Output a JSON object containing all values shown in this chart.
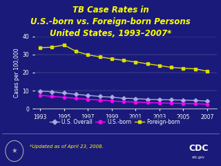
{
  "title_line1": "TB Case Rates in",
  "title_line2": "U.S.-born vs. Foreign-born Persons",
  "title_line3": "United States, 1993–2007*",
  "title_color": "#FFFF00",
  "background_color": "#1a1a7a",
  "plot_bg_color": "#1a1a7a",
  "years": [
    1993,
    1994,
    1995,
    1996,
    1997,
    1998,
    1999,
    2000,
    2001,
    2002,
    2003,
    2004,
    2005,
    2006,
    2007
  ],
  "us_overall": [
    9.8,
    9.4,
    8.7,
    8.0,
    7.4,
    6.8,
    6.4,
    5.8,
    5.6,
    5.2,
    5.1,
    4.9,
    4.8,
    4.6,
    4.2
  ],
  "us_born": [
    7.5,
    6.8,
    6.3,
    5.8,
    5.2,
    4.8,
    4.3,
    3.9,
    3.7,
    3.4,
    3.2,
    3.1,
    2.9,
    2.8,
    2.5
  ],
  "foreign_born": [
    33.8,
    34.1,
    35.3,
    31.8,
    29.9,
    28.7,
    27.7,
    26.8,
    25.9,
    24.9,
    23.9,
    22.9,
    22.4,
    22.1,
    20.8
  ],
  "overall_color": "#aaaadd",
  "us_born_color": "#ff00ff",
  "foreign_born_color": "#dddd00",
  "ylabel": "Cases per 100,000",
  "ylim": [
    0,
    40
  ],
  "yticks": [
    0,
    10,
    20,
    30,
    40
  ],
  "tick_color": "#ffffff",
  "grid_color": "#ffffff",
  "footnote": "*Updated as of April 23, 2008.",
  "footnote_color": "#ffff00",
  "legend_labels": [
    "U.S. Overall",
    "U.S.-born",
    "Foreign-born"
  ]
}
